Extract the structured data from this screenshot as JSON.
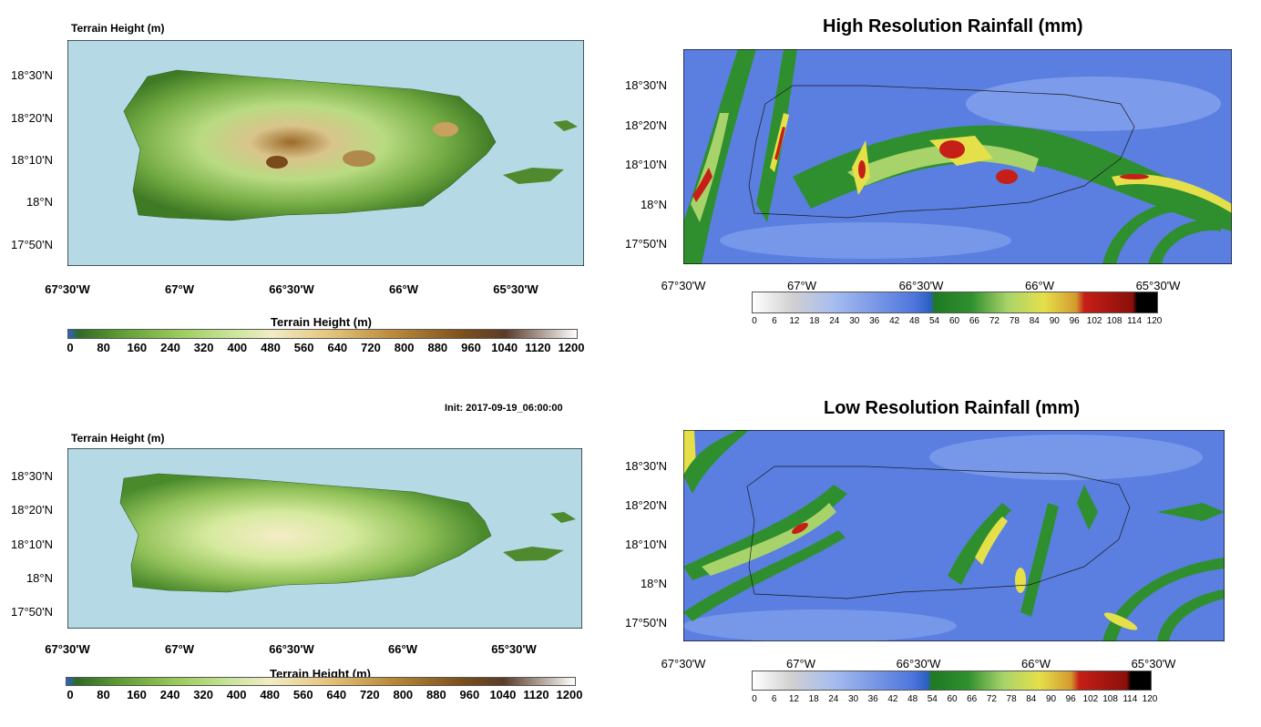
{
  "panels": {
    "terrain_hi": {
      "title": "Terrain Height   (m)"
    },
    "terrain_lo": {
      "title": "Terrain Height   (m)"
    },
    "rain_hi": {
      "title": "High Resolution Rainfall (mm)"
    },
    "rain_lo": {
      "title": "Low Resolution Rainfall (mm)"
    }
  },
  "init_text": "Init: 2017-09-19_06:00:00",
  "lat_labels": [
    "18°30'N",
    "18°20'N",
    "18°10'N",
    "18°N",
    "17°50'N"
  ],
  "lon_labels": [
    "67°30'W",
    "67°W",
    "66°30'W",
    "66°W",
    "65°30'W"
  ],
  "terrain_colorbar": {
    "title": "Terrain Height  (m)",
    "labels": [
      "0",
      "80",
      "160",
      "240",
      "320",
      "400",
      "480",
      "560",
      "640",
      "720",
      "800",
      "880",
      "960",
      "1040",
      "1120",
      "1200"
    ]
  },
  "rain_colorbar": {
    "labels": [
      "0",
      "6",
      "12",
      "18",
      "24",
      "30",
      "36",
      "42",
      "48",
      "54",
      "60",
      "66",
      "72",
      "78",
      "84",
      "90",
      "96",
      "102",
      "108",
      "114",
      "120"
    ]
  },
  "colors": {
    "ocean": "#b5d9e5",
    "land_low": "#3f7a24",
    "land_mid": "#a8cf6a",
    "land_high": "#8a5b1e",
    "rain_bg": "#4f76dd",
    "rain_green": "#2f8f2e",
    "rain_yellow": "#e5e04a",
    "rain_red": "#c61f17"
  }
}
